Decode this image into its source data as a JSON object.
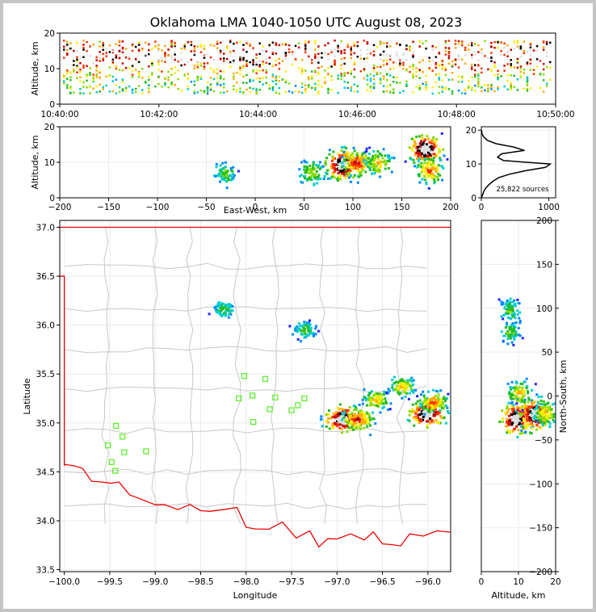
{
  "chart_data": [
    {
      "type": "heatmap",
      "panel": "time-altitude",
      "title": "Oklahoma LMA 1040-1050 UTC August 08, 2023",
      "xlabel": "",
      "ylabel": "Altitude, km",
      "xticks": [
        "10:40:00",
        "10:42:00",
        "10:44:00",
        "10:46:00",
        "10:48:00",
        "10:50:00"
      ],
      "xlim": [
        "10:40:00",
        "10:50:00"
      ],
      "yticks": [
        0,
        10,
        20
      ],
      "ylim": [
        0,
        20
      ],
      "band": {
        "altitude_min_km": 3,
        "altitude_max_km": 18,
        "densest_altitude_km": 14
      }
    },
    {
      "type": "heatmap",
      "panel": "east-west-altitude",
      "xlabel": "East-West, km",
      "ylabel": "Altitude, km",
      "xticks": [
        -200,
        -150,
        -100,
        -50,
        0,
        50,
        100,
        150,
        200
      ],
      "xlim": [
        -200,
        200
      ],
      "yticks": [
        0,
        10,
        20
      ],
      "ylim": [
        0,
        20
      ],
      "clusters": [
        {
          "x": -32,
          "y": 7,
          "density": 0.3
        },
        {
          "x": 57,
          "y": 7.5,
          "density": 0.4
        },
        {
          "x": 88,
          "y": 9.5,
          "density": 1.0
        },
        {
          "x": 103,
          "y": 10,
          "density": 0.7
        },
        {
          "x": 125,
          "y": 10,
          "density": 0.5
        },
        {
          "x": 173,
          "y": 14,
          "density": 1.0
        },
        {
          "x": 178,
          "y": 8,
          "density": 0.6
        }
      ]
    },
    {
      "type": "line",
      "panel": "altitude-histogram",
      "xlabel": "",
      "ylabel": "",
      "xticks": [
        0,
        1000
      ],
      "xlim": [
        0,
        1100
      ],
      "yticks": [
        0,
        10,
        20
      ],
      "ylim": [
        0,
        21
      ],
      "annotation": "25,822 sources",
      "series": [
        {
          "altitude_km": [
            0,
            1,
            2,
            3,
            4,
            5,
            6,
            7,
            8,
            9,
            10,
            11,
            12,
            13,
            14,
            15,
            16,
            17,
            18,
            19,
            20
          ],
          "count": [
            0,
            20,
            40,
            70,
            120,
            180,
            260,
            420,
            650,
            950,
            1020,
            330,
            240,
            300,
            640,
            480,
            220,
            90,
            35,
            10,
            3
          ]
        }
      ]
    },
    {
      "type": "scatter",
      "panel": "plan-view",
      "xlabel": "Longitude",
      "ylabel": "Latitude",
      "xticks": [
        -100.0,
        -99.5,
        -99.0,
        -98.5,
        -98.0,
        -97.5,
        -97.0,
        -96.5,
        -96.0
      ],
      "xlim": [
        -100.05,
        -95.75
      ],
      "yticks": [
        33.5,
        34.0,
        34.5,
        35.0,
        35.5,
        36.0,
        36.5,
        37.0
      ],
      "ylim": [
        33.48,
        37.07
      ],
      "stations": [
        {
          "lon": -99.43,
          "lat": 34.97
        },
        {
          "lon": -99.36,
          "lat": 34.86
        },
        {
          "lon": -99.52,
          "lat": 34.77
        },
        {
          "lon": -99.34,
          "lat": 34.7
        },
        {
          "lon": -99.48,
          "lat": 34.6
        },
        {
          "lon": -99.44,
          "lat": 34.51
        },
        {
          "lon": -99.1,
          "lat": 34.71
        },
        {
          "lon": -98.02,
          "lat": 35.48
        },
        {
          "lon": -97.79,
          "lat": 35.45
        },
        {
          "lon": -98.08,
          "lat": 35.25
        },
        {
          "lon": -97.93,
          "lat": 35.28
        },
        {
          "lon": -97.68,
          "lat": 35.26
        },
        {
          "lon": -97.36,
          "lat": 35.25
        },
        {
          "lon": -97.74,
          "lat": 35.14
        },
        {
          "lon": -97.43,
          "lat": 35.18
        },
        {
          "lon": -97.5,
          "lat": 35.13
        },
        {
          "lon": -97.92,
          "lat": 35.01
        }
      ],
      "clusters": [
        {
          "lon": -98.26,
          "lat": 36.17,
          "density": 0.3
        },
        {
          "lon": -97.37,
          "lat": 35.96,
          "density": 0.3
        },
        {
          "lon": -96.95,
          "lat": 35.05,
          "density": 1.0
        },
        {
          "lon": -96.78,
          "lat": 35.05,
          "density": 0.7
        },
        {
          "lon": -96.58,
          "lat": 35.25,
          "density": 0.5
        },
        {
          "lon": -96.29,
          "lat": 35.38,
          "density": 0.5
        },
        {
          "lon": -96.02,
          "lat": 35.1,
          "density": 1.0
        },
        {
          "lon": -95.95,
          "lat": 35.22,
          "density": 0.6
        }
      ]
    },
    {
      "type": "heatmap",
      "panel": "altitude-north-south",
      "xlabel": "Altitude, km",
      "ylabel": "North-South, km",
      "xticks": [
        0,
        10,
        20
      ],
      "xlim": [
        0,
        20
      ],
      "yticks": [
        -200,
        -150,
        -100,
        -50,
        0,
        50,
        100,
        150,
        200
      ],
      "ylim": [
        -200,
        200
      ],
      "clusters": [
        {
          "x": 7.5,
          "y": 99,
          "density": 0.3
        },
        {
          "x": 7.5,
          "y": 74,
          "density": 0.3
        },
        {
          "x": 9,
          "y": -25,
          "density": 1.0
        },
        {
          "x": 14,
          "y": -20,
          "density": 1.0
        },
        {
          "x": 10,
          "y": 5,
          "density": 0.5
        },
        {
          "x": 17,
          "y": -18,
          "density": 0.5
        }
      ]
    }
  ]
}
